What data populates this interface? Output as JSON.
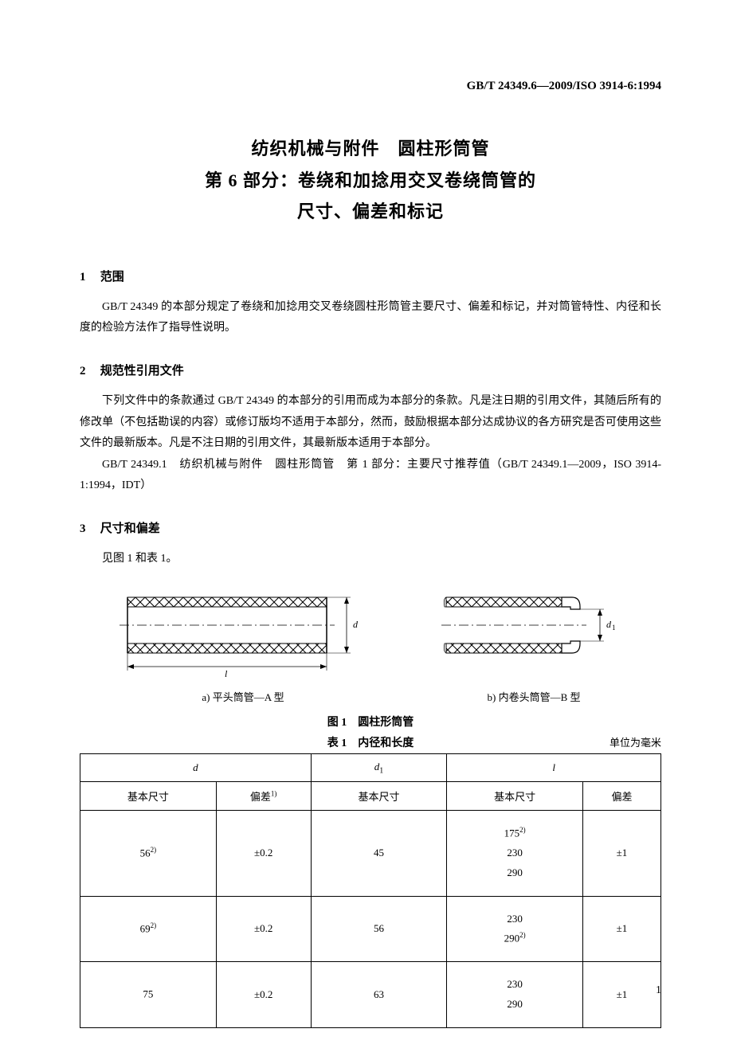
{
  "header": {
    "code": "GB/T 24349.6—2009/ISO 3914-6:1994"
  },
  "title": {
    "line1": "纺织机械与附件　圆柱形筒管",
    "line2": "第 6 部分：卷绕和加捻用交叉卷绕筒管的",
    "line3": "尺寸、偏差和标记"
  },
  "sections": {
    "s1": {
      "num": "1",
      "title": "范围",
      "p1": "GB/T 24349 的本部分规定了卷绕和加捻用交叉卷绕圆柱形筒管主要尺寸、偏差和标记，并对筒管特性、内径和长度的检验方法作了指导性说明。"
    },
    "s2": {
      "num": "2",
      "title": "规范性引用文件",
      "p1": "下列文件中的条款通过 GB/T 24349 的本部分的引用而成为本部分的条款。凡是注日期的引用文件，其随后所有的修改单（不包括勘误的内容）或修订版均不适用于本部分，然而，鼓励根据本部分达成协议的各方研究是否可使用这些文件的最新版本。凡是不注日期的引用文件，其最新版本适用于本部分。",
      "p2": "GB/T 24349.1　纺织机械与附件　圆柱形筒管　第 1 部分：主要尺寸推荐值（GB/T 24349.1—2009，ISO 3914-1:1994，IDT）"
    },
    "s3": {
      "num": "3",
      "title": "尺寸和偏差",
      "p1": "见图 1 和表 1。"
    }
  },
  "figures": {
    "a": {
      "caption": "a) 平头筒管—A 型",
      "l_label": "l",
      "d_label": "d"
    },
    "b": {
      "caption": "b) 内卷头筒管—B 型",
      "d1_label": "d₁"
    },
    "title": "图 1　圆柱形筒管"
  },
  "table": {
    "title": "表 1　内径和长度",
    "unit": "单位为毫米",
    "headers": {
      "d": "d",
      "d1": "d₁",
      "l": "l",
      "basic": "基本尺寸",
      "tol": "偏差",
      "tol_note": "1)"
    },
    "rows": [
      {
        "d_basic": "56",
        "d_note": "2)",
        "d_tol": "±0.2",
        "d1_basic": "45",
        "l_basic": "175<sup class=\"footnote-sup\">2)</sup><br>230<br>290",
        "l_tol": "±1"
      },
      {
        "d_basic": "69",
        "d_note": "2)",
        "d_tol": "±0.2",
        "d1_basic": "56",
        "l_basic": "230<br>290<sup class=\"footnote-sup\">2)</sup>",
        "l_tol": "±1"
      },
      {
        "d_basic": "75",
        "d_note": "",
        "d_tol": "±0.2",
        "d1_basic": "63",
        "l_basic": "230<br>290",
        "l_tol": "±1"
      }
    ]
  },
  "page_num": "1",
  "colors": {
    "text": "#000000",
    "bg": "#ffffff",
    "hatch": "#000000",
    "line": "#000000"
  }
}
